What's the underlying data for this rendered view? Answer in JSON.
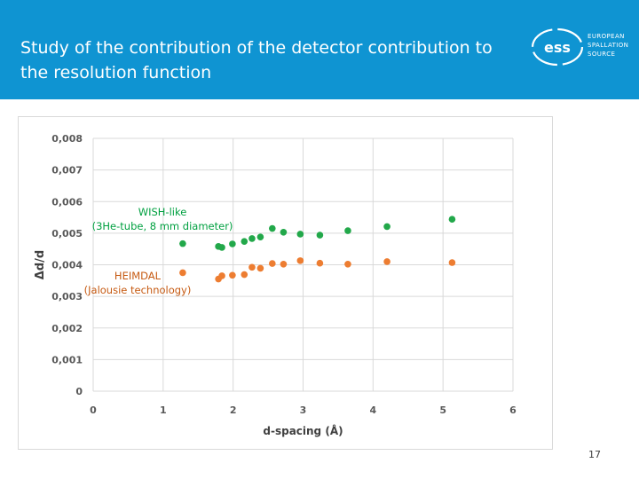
{
  "slide": {
    "title": "Study of the contribution of the detector contribution to the resolution function",
    "page_number": "17",
    "logo": {
      "mark": "ess",
      "lines": [
        "EUROPEAN",
        "SPALLATION",
        "SOURCE"
      ]
    },
    "colors": {
      "header": "#0f94d2",
      "text": "#ffffff"
    }
  },
  "chart_data": {
    "type": "scatter",
    "title": "",
    "xlabel": "d-spacing (Å)",
    "ylabel": "Δd/d",
    "xlim": [
      0,
      6
    ],
    "ylim": [
      0,
      0.008
    ],
    "xticks": [
      "0",
      "1",
      "2",
      "3",
      "4",
      "5",
      "6"
    ],
    "yticks": [
      "0",
      "0,001",
      "0,002",
      "0,003",
      "0,004",
      "0,005",
      "0,006",
      "0,007",
      "0,008"
    ],
    "grid": true,
    "annotations": [
      {
        "text": [
          "WISH-like",
          "(3He-tube, 8 mm diameter)"
        ],
        "color": "#00a040",
        "series": "WISH-like"
      },
      {
        "text": [
          "HEIMDAL",
          "(Jalousie technology)"
        ],
        "color": "#c65a12",
        "series": "HEIMDAL"
      }
    ],
    "series": [
      {
        "name": "WISH-like",
        "color": "#22a84a",
        "x": [
          1.28,
          1.79,
          1.84,
          1.99,
          2.16,
          2.27,
          2.39,
          2.56,
          2.72,
          2.96,
          3.24,
          3.64,
          4.2,
          5.13
        ],
        "y": [
          0.00467,
          0.00458,
          0.00455,
          0.00466,
          0.00474,
          0.00483,
          0.00488,
          0.00515,
          0.00503,
          0.00497,
          0.00494,
          0.00508,
          0.00521,
          0.00544
        ]
      },
      {
        "name": "HEIMDAL",
        "color": "#ed7d31",
        "x": [
          1.28,
          1.79,
          1.84,
          1.99,
          2.16,
          2.27,
          2.39,
          2.56,
          2.72,
          2.96,
          3.24,
          3.64,
          4.2,
          5.13
        ],
        "y": [
          0.00375,
          0.00355,
          0.00365,
          0.00367,
          0.00369,
          0.00392,
          0.00389,
          0.00404,
          0.00402,
          0.00413,
          0.00405,
          0.00402,
          0.0041,
          0.00407
        ]
      }
    ]
  }
}
